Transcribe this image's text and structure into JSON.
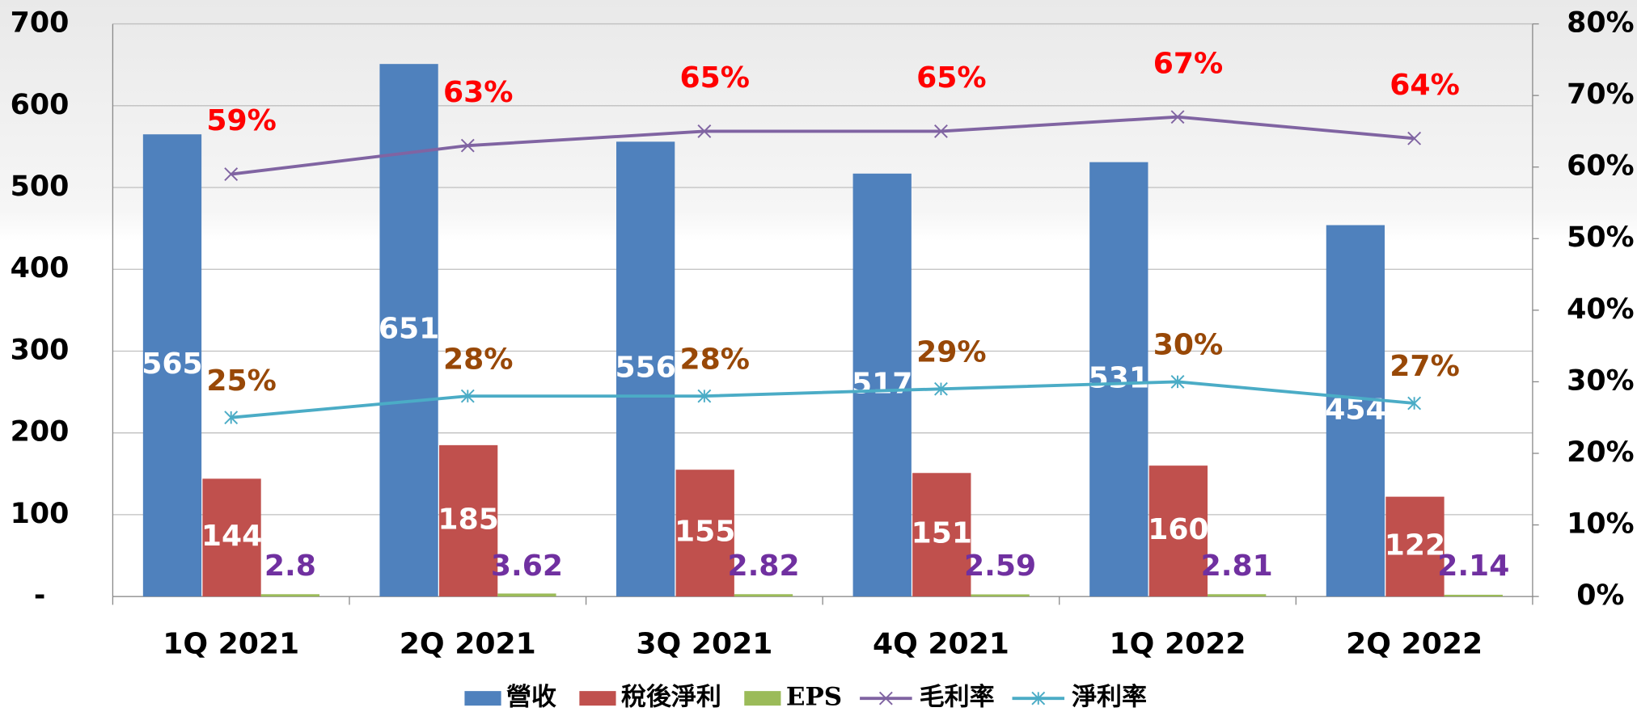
{
  "chart_data": {
    "type": "bar",
    "categories": [
      "1Q 2021",
      "2Q 2021",
      "3Q 2021",
      "4Q 2021",
      "1Q 2022",
      "2Q 2022"
    ],
    "series": [
      {
        "name": "營收",
        "type": "bar",
        "color": "#4f81bd",
        "label_color": "#ffffff",
        "values": [
          565,
          651,
          556,
          517,
          531,
          454
        ]
      },
      {
        "name": "稅後淨利",
        "type": "bar",
        "color": "#c0504d",
        "label_color": "#ffffff",
        "values": [
          144,
          185,
          155,
          151,
          160,
          122
        ]
      },
      {
        "name": "EPS",
        "type": "bar",
        "color": "#9bbb59",
        "label_color": "#7030a0",
        "values": [
          2.8,
          3.62,
          2.82,
          2.59,
          2.81,
          2.14
        ]
      },
      {
        "name": "毛利率",
        "type": "line",
        "axis": "y2",
        "marker": "x",
        "color": "#8064a2",
        "label_color": "#ff0000",
        "values": [
          59,
          63,
          65,
          65,
          67,
          64
        ],
        "value_labels": [
          "59%",
          "63%",
          "65%",
          "65%",
          "67%",
          "64%"
        ]
      },
      {
        "name": "淨利率",
        "type": "line",
        "axis": "y2",
        "marker": "star",
        "color": "#4bacc6",
        "label_color": "#984807",
        "values": [
          25,
          28,
          28,
          29,
          30,
          27
        ],
        "value_labels": [
          "25%",
          "28%",
          "28%",
          "29%",
          "30%",
          "27%"
        ]
      }
    ],
    "ylim": [
      0,
      700
    ],
    "yticks": [
      {
        "value": 0,
        "label": "-"
      },
      100,
      200,
      300,
      400,
      500,
      600,
      700
    ],
    "y2lim": [
      0,
      80
    ],
    "y2ticks": [
      {
        "value": 0,
        "label": "0%"
      },
      {
        "value": 10,
        "label": "10%"
      },
      {
        "value": 20,
        "label": "20%"
      },
      {
        "value": 30,
        "label": "30%"
      },
      {
        "value": 40,
        "label": "40%"
      },
      {
        "value": 50,
        "label": "50%"
      },
      {
        "value": 60,
        "label": "60%"
      },
      {
        "value": 70,
        "label": "70%"
      },
      {
        "value": 80,
        "label": "80%"
      }
    ],
    "grid": true,
    "legend": "bottom"
  }
}
